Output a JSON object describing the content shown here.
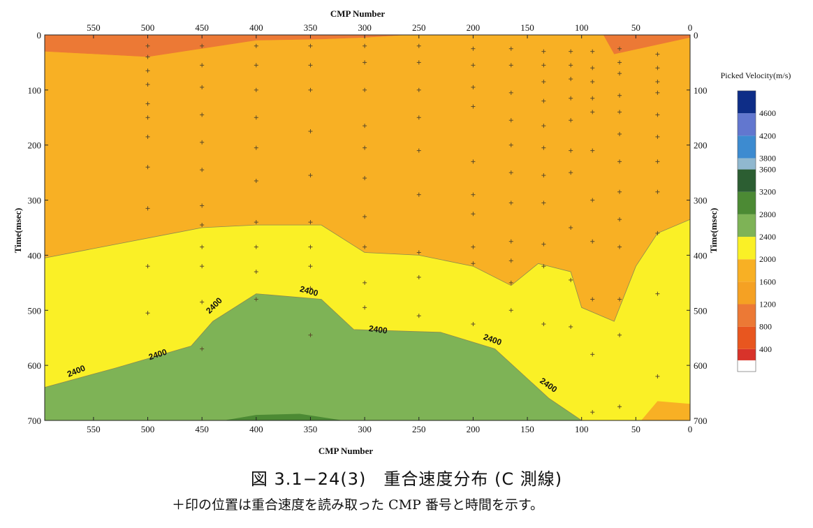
{
  "chart_data": {
    "type": "heatmap",
    "title": "",
    "xlabel": "CMP Number",
    "ylabel": "Time(msec)",
    "x_axis_reversed": true,
    "x_ticks": [
      550,
      500,
      450,
      400,
      350,
      300,
      250,
      200,
      150,
      100,
      50,
      0
    ],
    "y_ticks": [
      0,
      100,
      200,
      300,
      400,
      500,
      600,
      700
    ],
    "xlim": [
      595,
      0
    ],
    "ylim": [
      0,
      700
    ],
    "colorbar": {
      "title": "Picked Velocity(m/s)",
      "levels": [
        400,
        800,
        1200,
        1600,
        2000,
        2400,
        2800,
        3200,
        3600,
        3800,
        4200,
        4600
      ],
      "max": 5000,
      "colors": [
        "#d8332a",
        "#e8561f",
        "#ec7935",
        "#f5a123",
        "#f8b024",
        "#faf026",
        "#7eb356",
        "#4c8a34",
        "#2c5e32",
        "#90b8cf",
        "#3d8bd0",
        "#6277cf",
        "#0e2d87"
      ]
    },
    "contour_labels": [
      {
        "text": "2400",
        "cmp": 565,
        "time": 615
      },
      {
        "text": "2400",
        "cmp": 490,
        "time": 585
      },
      {
        "text": "2400",
        "cmp": 437,
        "time": 495
      },
      {
        "text": "2400",
        "cmp": 352,
        "time": 470
      },
      {
        "text": "2400",
        "cmp": 288,
        "time": 540
      },
      {
        "text": "2400",
        "cmp": 183,
        "time": 558
      },
      {
        "text": "2400",
        "cmp": 132,
        "time": 640
      }
    ],
    "regions": [
      {
        "name": "1600-2000",
        "polygon": [
          [
            595,
            30
          ],
          [
            500,
            40
          ],
          [
            400,
            10
          ],
          [
            340,
            8
          ],
          [
            300,
            5
          ],
          [
            260,
            0
          ],
          [
            80,
            0
          ],
          [
            70,
            35
          ],
          [
            0,
            5
          ],
          [
            0,
            700
          ],
          [
            595,
            700
          ]
        ]
      },
      {
        "name": "2000-2400",
        "polygon": [
          [
            595,
            30
          ],
          [
            500,
            40
          ],
          [
            400,
            10
          ],
          [
            340,
            8
          ],
          [
            300,
            5
          ],
          [
            260,
            0
          ],
          [
            80,
            0
          ],
          [
            70,
            35
          ],
          [
            0,
            5
          ],
          [
            0,
            335
          ],
          [
            30,
            360
          ],
          [
            50,
            420
          ],
          [
            70,
            520
          ],
          [
            100,
            495
          ],
          [
            110,
            430
          ],
          [
            140,
            415
          ],
          [
            165,
            455
          ],
          [
            200,
            420
          ],
          [
            250,
            400
          ],
          [
            300,
            395
          ],
          [
            340,
            345
          ],
          [
            400,
            345
          ],
          [
            450,
            350
          ],
          [
            595,
            405
          ]
        ]
      },
      {
        "name": "2400-2800",
        "polygon": [
          [
            0,
            335
          ],
          [
            30,
            360
          ],
          [
            50,
            420
          ],
          [
            70,
            520
          ],
          [
            100,
            495
          ],
          [
            110,
            430
          ],
          [
            140,
            415
          ],
          [
            165,
            455
          ],
          [
            200,
            420
          ],
          [
            250,
            400
          ],
          [
            300,
            395
          ],
          [
            340,
            345
          ],
          [
            400,
            345
          ],
          [
            450,
            350
          ],
          [
            595,
            405
          ],
          [
            595,
            700
          ],
          [
            0,
            700
          ]
        ]
      },
      {
        "name": "2800-3200",
        "polygon": [
          [
            595,
            640
          ],
          [
            530,
            605
          ],
          [
            460,
            565
          ],
          [
            440,
            520
          ],
          [
            400,
            470
          ],
          [
            340,
            480
          ],
          [
            310,
            535
          ],
          [
            230,
            540
          ],
          [
            180,
            570
          ],
          [
            130,
            660
          ],
          [
            100,
            700
          ],
          [
            595,
            700
          ]
        ]
      },
      {
        "name": "3200-3600",
        "polygon": [
          [
            430,
            700
          ],
          [
            400,
            690
          ],
          [
            360,
            688
          ],
          [
            320,
            700
          ]
        ]
      },
      {
        "name": "2000-2400 lower",
        "polygon": [
          [
            0,
            670
          ],
          [
            30,
            665
          ],
          [
            45,
            700
          ],
          [
            0,
            700
          ]
        ]
      }
    ],
    "picks": [
      [
        500,
        20
      ],
      [
        500,
        40
      ],
      [
        500,
        65
      ],
      [
        500,
        90
      ],
      [
        500,
        125
      ],
      [
        500,
        150
      ],
      [
        500,
        185
      ],
      [
        500,
        240
      ],
      [
        500,
        315
      ],
      [
        500,
        420
      ],
      [
        500,
        505
      ],
      [
        450,
        20
      ],
      [
        450,
        55
      ],
      [
        450,
        95
      ],
      [
        450,
        145
      ],
      [
        450,
        195
      ],
      [
        450,
        245
      ],
      [
        450,
        310
      ],
      [
        450,
        345
      ],
      [
        450,
        385
      ],
      [
        450,
        420
      ],
      [
        450,
        485
      ],
      [
        450,
        570
      ],
      [
        400,
        20
      ],
      [
        400,
        55
      ],
      [
        400,
        100
      ],
      [
        400,
        150
      ],
      [
        400,
        205
      ],
      [
        400,
        265
      ],
      [
        400,
        340
      ],
      [
        400,
        385
      ],
      [
        400,
        430
      ],
      [
        400,
        480
      ],
      [
        350,
        20
      ],
      [
        350,
        55
      ],
      [
        350,
        100
      ],
      [
        350,
        175
      ],
      [
        350,
        255
      ],
      [
        350,
        340
      ],
      [
        350,
        385
      ],
      [
        350,
        420
      ],
      [
        350,
        460
      ],
      [
        350,
        545
      ],
      [
        300,
        20
      ],
      [
        300,
        50
      ],
      [
        300,
        100
      ],
      [
        300,
        165
      ],
      [
        300,
        205
      ],
      [
        300,
        260
      ],
      [
        300,
        330
      ],
      [
        300,
        385
      ],
      [
        300,
        450
      ],
      [
        300,
        495
      ],
      [
        250,
        20
      ],
      [
        250,
        50
      ],
      [
        250,
        100
      ],
      [
        250,
        150
      ],
      [
        250,
        210
      ],
      [
        250,
        290
      ],
      [
        250,
        395
      ],
      [
        250,
        440
      ],
      [
        250,
        510
      ],
      [
        200,
        25
      ],
      [
        200,
        55
      ],
      [
        200,
        95
      ],
      [
        200,
        130
      ],
      [
        200,
        230
      ],
      [
        200,
        290
      ],
      [
        200,
        325
      ],
      [
        200,
        385
      ],
      [
        200,
        415
      ],
      [
        200,
        525
      ],
      [
        165,
        25
      ],
      [
        165,
        55
      ],
      [
        165,
        105
      ],
      [
        165,
        155
      ],
      [
        165,
        200
      ],
      [
        165,
        250
      ],
      [
        165,
        305
      ],
      [
        165,
        375
      ],
      [
        165,
        410
      ],
      [
        165,
        450
      ],
      [
        165,
        500
      ],
      [
        135,
        30
      ],
      [
        135,
        55
      ],
      [
        135,
        85
      ],
      [
        135,
        120
      ],
      [
        135,
        165
      ],
      [
        135,
        205
      ],
      [
        135,
        255
      ],
      [
        135,
        305
      ],
      [
        135,
        380
      ],
      [
        135,
        420
      ],
      [
        135,
        525
      ],
      [
        110,
        30
      ],
      [
        110,
        55
      ],
      [
        110,
        80
      ],
      [
        110,
        115
      ],
      [
        110,
        155
      ],
      [
        110,
        210
      ],
      [
        110,
        250
      ],
      [
        110,
        350
      ],
      [
        110,
        445
      ],
      [
        110,
        530
      ],
      [
        90,
        30
      ],
      [
        90,
        60
      ],
      [
        90,
        85
      ],
      [
        90,
        115
      ],
      [
        90,
        140
      ],
      [
        90,
        210
      ],
      [
        90,
        300
      ],
      [
        90,
        375
      ],
      [
        90,
        480
      ],
      [
        90,
        580
      ],
      [
        90,
        685
      ],
      [
        65,
        25
      ],
      [
        65,
        50
      ],
      [
        65,
        70
      ],
      [
        65,
        110
      ],
      [
        65,
        140
      ],
      [
        65,
        180
      ],
      [
        65,
        230
      ],
      [
        65,
        285
      ],
      [
        65,
        335
      ],
      [
        65,
        385
      ],
      [
        65,
        480
      ],
      [
        65,
        545
      ],
      [
        65,
        675
      ],
      [
        30,
        35
      ],
      [
        30,
        60
      ],
      [
        30,
        85
      ],
      [
        30,
        105
      ],
      [
        30,
        145
      ],
      [
        30,
        185
      ],
      [
        30,
        230
      ],
      [
        30,
        285
      ],
      [
        30,
        360
      ],
      [
        30,
        470
      ],
      [
        30,
        620
      ]
    ]
  },
  "caption": {
    "title": "図 3.1−24(3)　重合速度分布 (C 測線)",
    "note": "＋印の位置は重合速度を読み取った CMP 番号と時間を示す。"
  }
}
